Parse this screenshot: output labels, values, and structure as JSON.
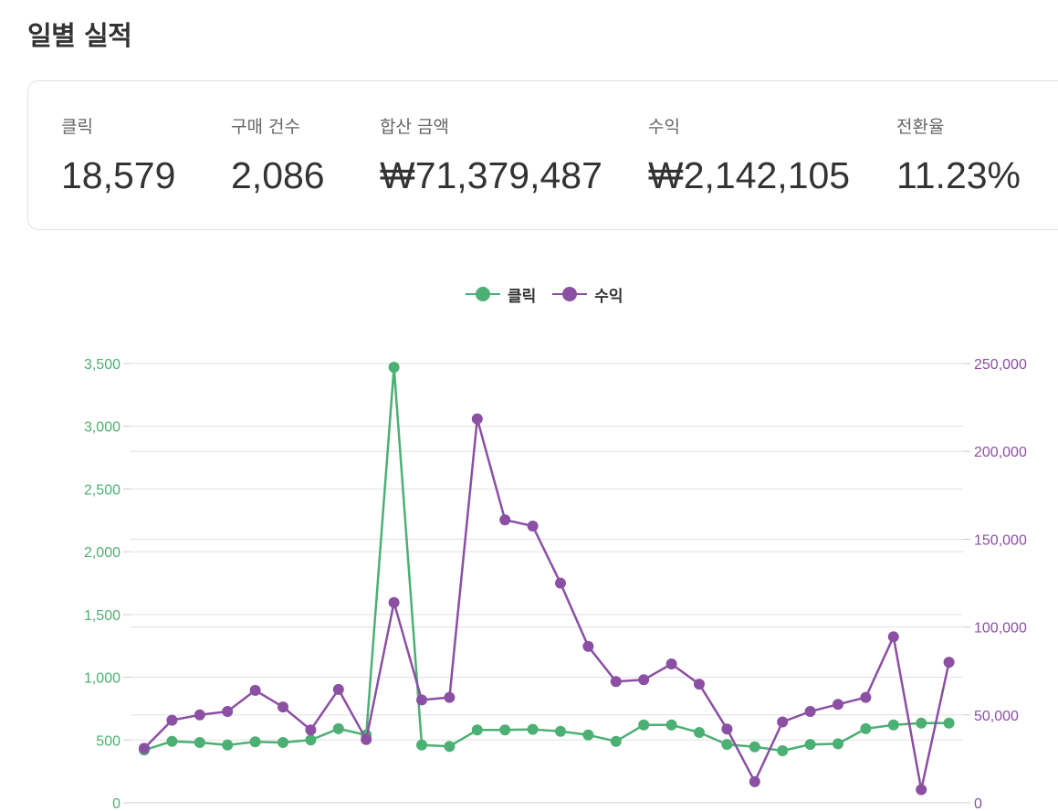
{
  "page": {
    "title": "일별 실적"
  },
  "stats": [
    {
      "label": "클릭",
      "value": "18,579"
    },
    {
      "label": "구매 건수",
      "value": "2,086"
    },
    {
      "label": "합산 금액",
      "value": "₩71,379,487"
    },
    {
      "label": "수익",
      "value": "₩2,142,105"
    },
    {
      "label": "전환율",
      "value": "11.23%"
    }
  ],
  "colors": {
    "clicks": "#4caf73",
    "revenue": "#8b4fa3",
    "grid": "#e0e0e0"
  },
  "chart_data": {
    "type": "line",
    "legend_position": "top-center",
    "grid": true,
    "x_points": 30,
    "series": [
      {
        "name": "클릭",
        "axis": "left",
        "values": [
          420,
          490,
          480,
          460,
          485,
          480,
          500,
          590,
          540,
          3470,
          460,
          450,
          580,
          580,
          585,
          570,
          540,
          490,
          620,
          620,
          560,
          465,
          445,
          415,
          465,
          470,
          590,
          620,
          635,
          635
        ]
      },
      {
        "name": "수익",
        "axis": "right",
        "values": [
          31000,
          47000,
          50000,
          52000,
          64000,
          54500,
          41500,
          64500,
          36000,
          114000,
          58500,
          60000,
          218500,
          161000,
          157500,
          125000,
          89000,
          69000,
          70000,
          79000,
          67500,
          42000,
          12000,
          46000,
          52000,
          56000,
          60000,
          94500,
          7500,
          80000
        ]
      }
    ],
    "y_left": {
      "min": 0,
      "max": 3500,
      "ticks": [
        "0",
        "500",
        "1,000",
        "1,500",
        "2,000",
        "2,500",
        "3,000",
        "3,500"
      ]
    },
    "y_right": {
      "min": 0,
      "max": 250000,
      "ticks": [
        "0",
        "50,000",
        "100,000",
        "150,000",
        "200,000",
        "250,000"
      ]
    }
  }
}
